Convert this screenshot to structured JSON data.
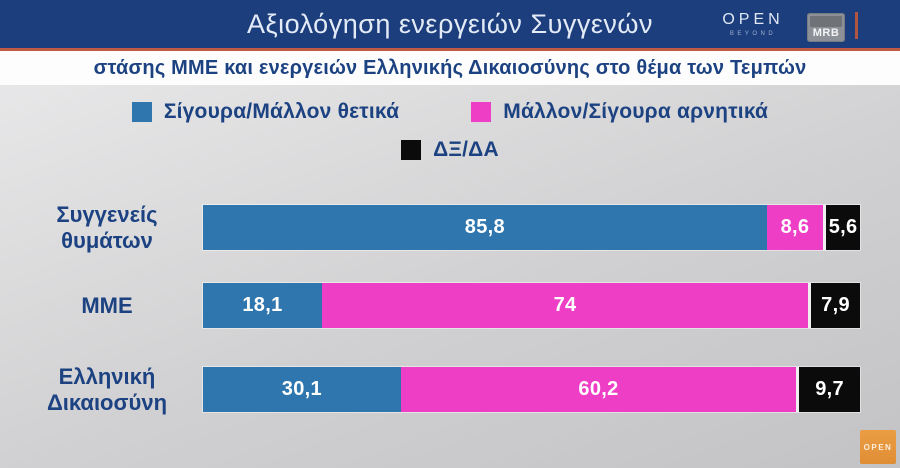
{
  "header": {
    "title": "Αξιολόγηση ενεργειών Συγγενών",
    "open_logo": {
      "text": "OPEN",
      "sub": "BEYOND"
    },
    "mrb_logo": "MRB"
  },
  "subtitle": "στάσης ΜΜΕ και ενεργειών Ελληνικής Δικαιοσύνης στο θέμα των Τεμπών",
  "colors": {
    "header_bg": "#1d3e7d",
    "accent_rule": "#c05a42",
    "positive_blue": "#2e76ad",
    "negative_pink": "#ee3ec6",
    "dk_black": "#0b0b0b",
    "text_navy": "#1c4282",
    "watermark_orange": "#e0913a"
  },
  "legend": [
    {
      "label": "Σίγουρα/Μάλλον θετικά",
      "color": "#2e76ad"
    },
    {
      "label": "Μάλλον/Σίγουρα αρνητικά",
      "color": "#ee3ec6"
    },
    {
      "label": "ΔΞ/ΔΑ",
      "color": "#0b0b0b"
    }
  ],
  "chart_data": {
    "type": "bar",
    "orientation": "horizontal",
    "stacked": true,
    "title": "Αξιολόγηση ενεργειών Συγγενών",
    "subtitle": "στάσης ΜΜΕ και ενεργειών Ελληνικής Δικαιοσύνης στο θέμα των Τεμπών",
    "xlim": [
      0,
      100
    ],
    "grid": false,
    "legend_position": "top-center",
    "categories": [
      "Συγγενείς θυμάτων",
      "ΜΜΕ",
      "Ελληνική Δικαιοσύνη"
    ],
    "series": [
      {
        "name": "Σίγουρα/Μάλλον θετικά",
        "color": "#2e76ad",
        "values": [
          85.8,
          18.1,
          30.1
        ]
      },
      {
        "name": "Μάλλον/Σίγουρα αρνητικά",
        "color": "#ee3ec6",
        "values": [
          8.6,
          74,
          60.2
        ]
      },
      {
        "name": "ΔΞ/ΔΑ",
        "color": "#0b0b0b",
        "values": [
          5.6,
          7.9,
          9.7
        ]
      }
    ],
    "rows": [
      {
        "label": "Συγγενείς\nθυμάτων",
        "values": [
          85.8,
          8.6,
          5.6
        ],
        "labels": [
          "85,8",
          "8,6",
          "5,6"
        ]
      },
      {
        "label": "ΜΜΕ",
        "values": [
          18.1,
          74,
          7.9
        ],
        "labels": [
          "18,1",
          "74",
          "7,9"
        ]
      },
      {
        "label": "Ελληνική\nΔικαιοσύνη",
        "values": [
          30.1,
          60.2,
          9.7
        ],
        "labels": [
          "30,1",
          "60,2",
          "9,7"
        ]
      }
    ]
  },
  "watermark": {
    "text": "OPEN"
  }
}
